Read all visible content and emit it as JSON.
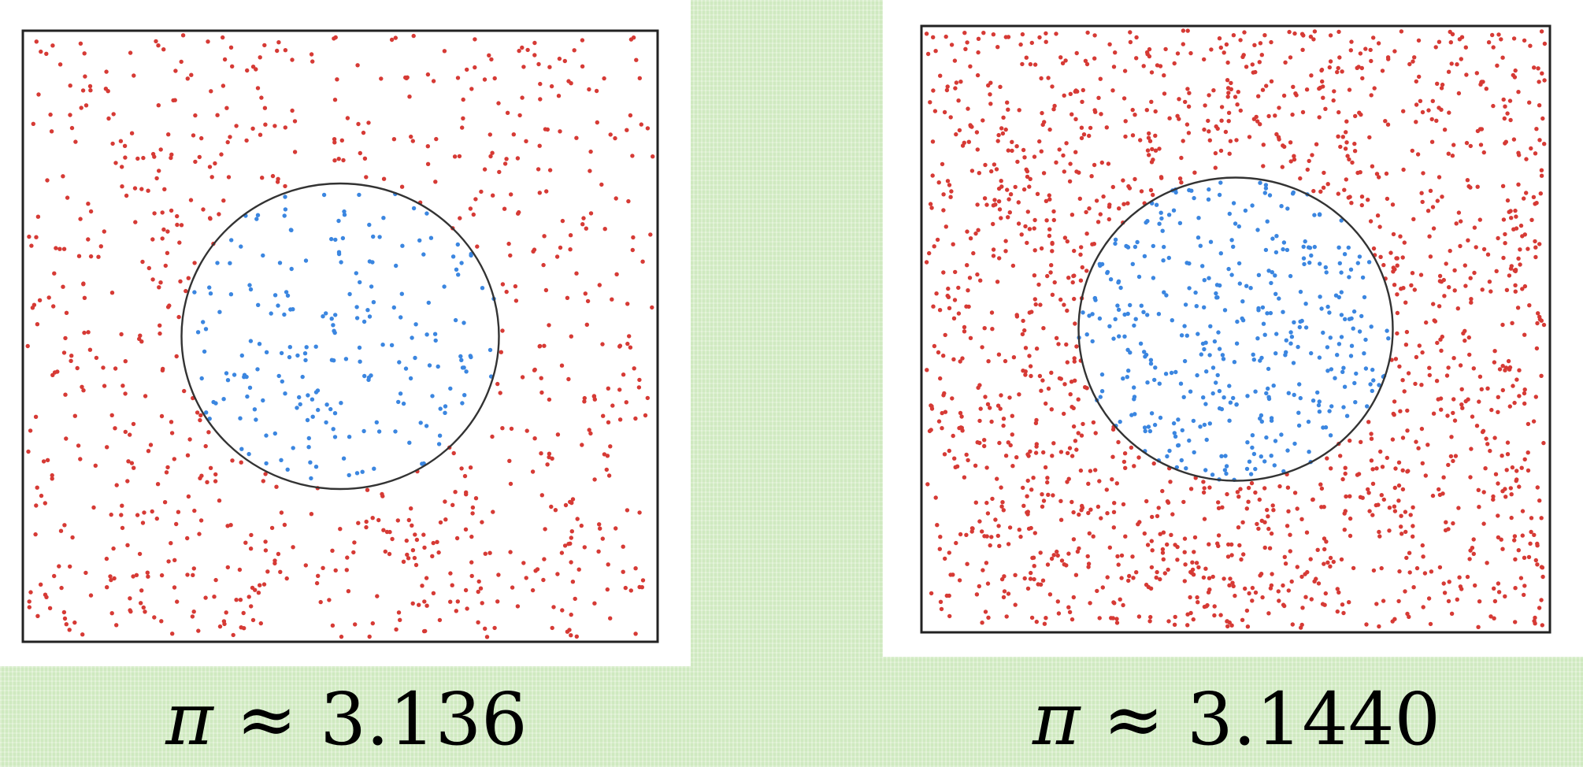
{
  "chart_data": [
    {
      "type": "scatter",
      "title": "",
      "xlim": [
        -1,
        1
      ],
      "ylim": [
        -1,
        1
      ],
      "circle": {
        "center": [
          0,
          0
        ],
        "radius": 0.5
      },
      "series": [
        {
          "color": "#d63a35",
          "region": "outside circle"
        },
        {
          "color": "#3b86e0",
          "region": "inside circle"
        }
      ],
      "approx_total_points": 1000,
      "annotation": {
        "symbol": "π",
        "relation": "≈",
        "value": "3.136"
      }
    },
    {
      "type": "scatter",
      "title": "",
      "xlim": [
        -1,
        1
      ],
      "ylim": [
        -1,
        1
      ],
      "circle": {
        "center": [
          0,
          0
        ],
        "radius": 0.5
      },
      "series": [
        {
          "color": "#d63a35",
          "region": "outside circle"
        },
        {
          "color": "#3b86e0",
          "region": "inside circle"
        }
      ],
      "approx_total_points": 2000,
      "annotation": {
        "symbol": "π",
        "relation": "≈",
        "value": "3.1440"
      }
    }
  ]
}
